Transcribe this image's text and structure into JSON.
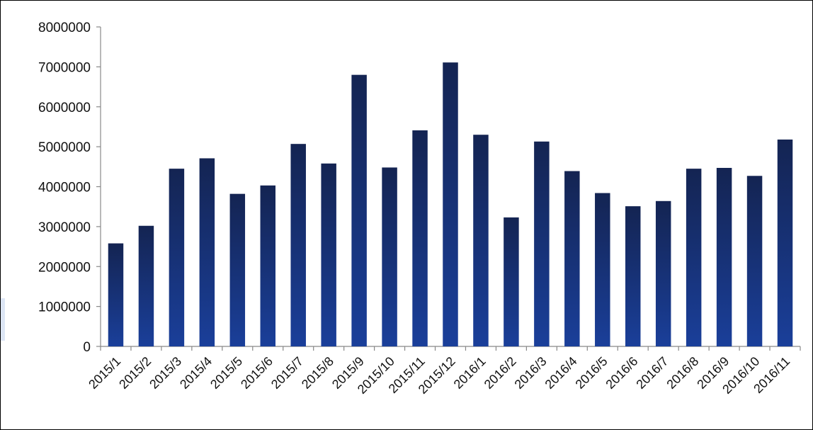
{
  "chart_data": {
    "type": "bar",
    "title": "",
    "xlabel": "",
    "ylabel": "",
    "ylim": [
      0,
      8000000
    ],
    "yticks": [
      0,
      1000000,
      2000000,
      3000000,
      4000000,
      5000000,
      6000000,
      7000000,
      8000000
    ],
    "ytick_labels": [
      "0",
      "1000000",
      "2000000",
      "3000000",
      "4000000",
      "5000000",
      "6000000",
      "7000000",
      "8000000"
    ],
    "grid": false,
    "legend": "none",
    "categories": [
      "2015/1",
      "2015/2",
      "2015/3",
      "2015/4",
      "2015/5",
      "2015/6",
      "2015/7",
      "2015/8",
      "2015/9",
      "2015/10",
      "2015/11",
      "2015/12",
      "2016/1",
      "2016/2",
      "2016/3",
      "2016/4",
      "2016/5",
      "2016/6",
      "2016/7",
      "2016/8",
      "2016/9",
      "2016/10",
      "2016/11"
    ],
    "values": [
      2580000,
      3020000,
      4450000,
      4710000,
      3820000,
      4030000,
      5070000,
      4580000,
      6800000,
      4480000,
      5410000,
      7110000,
      5300000,
      3230000,
      5130000,
      4390000,
      3840000,
      3510000,
      3640000,
      4450000,
      4470000,
      4270000,
      5180000
    ],
    "bar_color_top": "#142452",
    "bar_color_bottom": "#1a3f9a"
  }
}
